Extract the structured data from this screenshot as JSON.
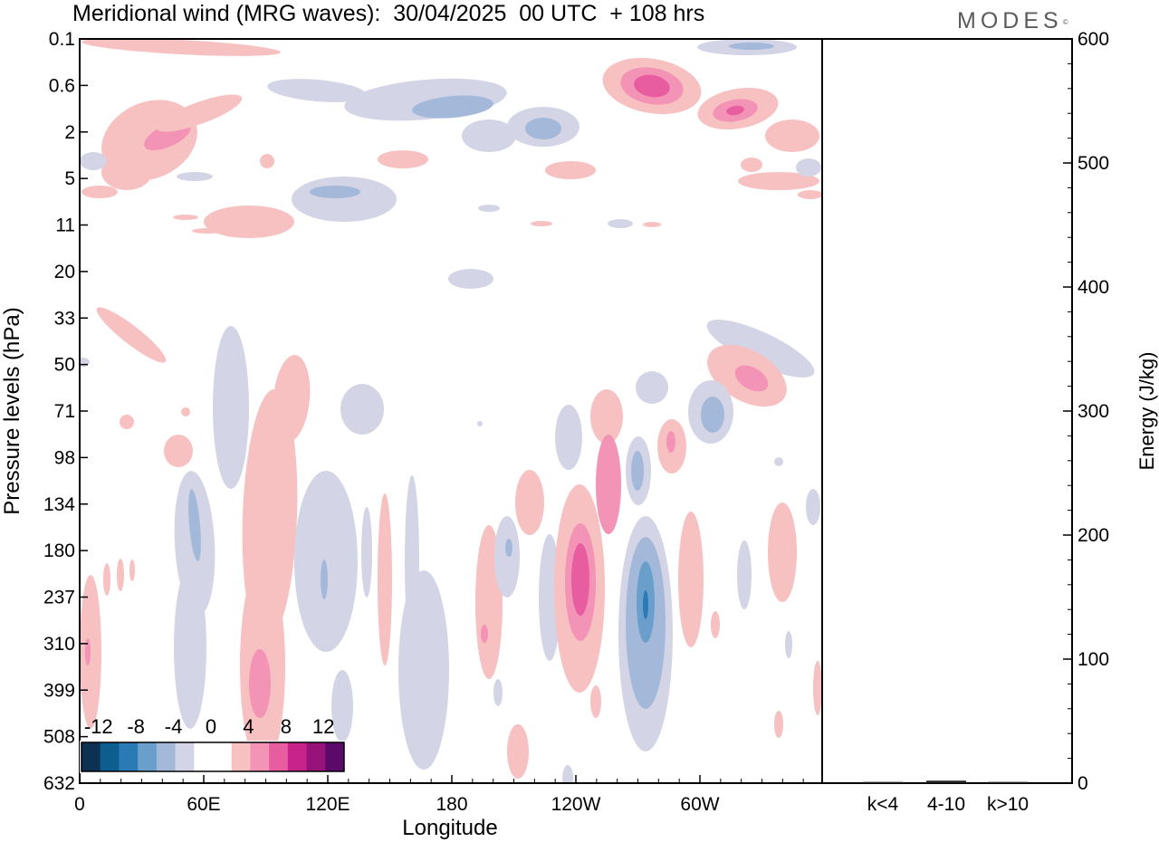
{
  "header": {
    "title": "Meridional wind (MRG waves):  30/04/2025  00 UTC  + 108 hrs",
    "logo_text": "MODES",
    "logo_mark": "©"
  },
  "chart_data": [
    {
      "type": "heatmap",
      "title": "Meridional wind (MRG waves):  30/04/2025  00 UTC  + 108 hrs",
      "xlabel": "Longitude",
      "ylabel": "Pressure levels (hPa)",
      "x_ticks": [
        "0",
        "60E",
        "120E",
        "180",
        "120W",
        "60W"
      ],
      "y_ticks": [
        "0.1",
        "0.6",
        "2",
        "5",
        "11",
        "20",
        "33",
        "50",
        "71",
        "98",
        "134",
        "180",
        "237",
        "310",
        "399",
        "508",
        "632"
      ],
      "colorbar": {
        "labels": [
          "-12",
          "-8",
          "-4",
          "0",
          "4",
          "8",
          "12"
        ],
        "colors": [
          "#0d3152",
          "#0e5d8f",
          "#2a7bb5",
          "#6a9fcb",
          "#a4b9da",
          "#d3d5e6",
          "#ffffff",
          "#ffffff",
          "#f8c1c1",
          "#f393b5",
          "#e75d9f",
          "#c8238a",
          "#96137a",
          "#5b0a6a"
        ]
      },
      "fields": {
        "positive_color_levels": [
          "#f8c1c1",
          "#f393b5",
          "#e75d9f",
          "#c8238a"
        ],
        "negative_color_levels": [
          "#d3d5e6",
          "#a4b9da",
          "#6a9fcb",
          "#2a7bb5"
        ]
      }
    },
    {
      "type": "bar",
      "ylabel": "Energy (J/kg)",
      "categories": [
        "k<4",
        "4-10",
        "k>10"
      ],
      "values": [
        1,
        2,
        1
      ],
      "ylim": [
        0,
        600
      ],
      "y_ticks": [
        "0",
        "100",
        "200",
        "300",
        "400",
        "500",
        "600"
      ]
    }
  ]
}
